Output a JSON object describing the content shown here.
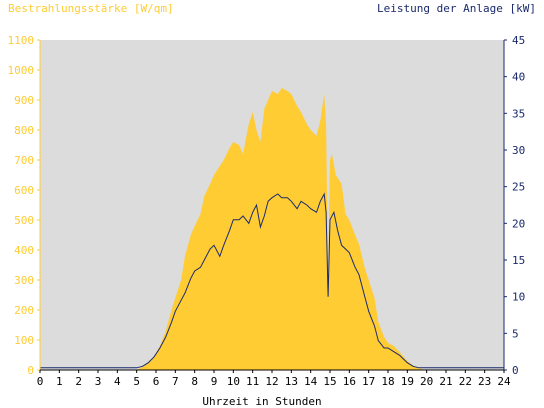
{
  "chart_data": {
    "type": "area",
    "title_left": "Bestrahlungsstärke [W/qm]",
    "title_right": "Leistung der Anlage [kW]",
    "xlabel": "Uhrzeit in Stunden",
    "x_ticks": [
      "0",
      "1",
      "2",
      "3",
      "4",
      "5",
      "6",
      "7",
      "8",
      "9",
      "10",
      "11",
      "12",
      "13",
      "14",
      "15",
      "16",
      "17",
      "18",
      "19",
      "20",
      "21",
      "22",
      "23",
      "24"
    ],
    "xlim": [
      0,
      24
    ],
    "y_left": {
      "lim": [
        0,
        1100
      ],
      "ticks": [
        "0",
        "100",
        "200",
        "300",
        "400",
        "500",
        "600",
        "700",
        "800",
        "900",
        "1000",
        "1100"
      ]
    },
    "y_right": {
      "lim": [
        0,
        45
      ],
      "ticks": [
        "0",
        "5",
        "10",
        "15",
        "20",
        "25",
        "30",
        "35",
        "40",
        "45"
      ]
    },
    "grid": false,
    "colors": {
      "plot_background": "#dcdcdc",
      "irradiance_fill": "#ffcc33",
      "power_line": "#1a2a6c",
      "left_axis_text": "#ffcc33",
      "right_axis_text": "#1a2a6c",
      "bottom_axis_text": "#000000"
    },
    "series": [
      {
        "axis": "left",
        "style": "area",
        "x": [
          0,
          5.0,
          5.3,
          5.6,
          5.9,
          6.2,
          6.5,
          6.8,
          7.0,
          7.3,
          7.5,
          7.8,
          8.0,
          8.3,
          8.5,
          8.8,
          9.0,
          9.3,
          9.5,
          9.8,
          10.0,
          10.3,
          10.5,
          10.8,
          11.0,
          11.2,
          11.4,
          11.6,
          11.8,
          12.0,
          12.3,
          12.5,
          12.8,
          13.0,
          13.3,
          13.5,
          13.8,
          14.0,
          14.3,
          14.5,
          14.7,
          14.8,
          14.9,
          15.0,
          15.1,
          15.3,
          15.6,
          15.8,
          16.0,
          16.3,
          16.5,
          16.8,
          17.0,
          17.3,
          17.5,
          17.8,
          18.0,
          18.3,
          18.6,
          19.0,
          19.3,
          19.6,
          20.0,
          20.2,
          24
        ],
        "values": [
          0,
          0,
          10,
          25,
          45,
          80,
          130,
          200,
          240,
          300,
          380,
          450,
          480,
          520,
          580,
          620,
          650,
          680,
          700,
          740,
          760,
          750,
          720,
          820,
          860,
          800,
          760,
          870,
          900,
          930,
          920,
          940,
          930,
          920,
          880,
          860,
          820,
          800,
          780,
          830,
          920,
          820,
          300,
          700,
          720,
          650,
          620,
          520,
          500,
          450,
          420,
          340,
          300,
          240,
          160,
          110,
          90,
          80,
          60,
          30,
          15,
          5,
          0,
          0,
          0
        ]
      },
      {
        "axis": "right",
        "style": "line",
        "x": [
          0,
          5.0,
          5.3,
          5.6,
          5.9,
          6.2,
          6.5,
          6.8,
          7.0,
          7.3,
          7.5,
          7.8,
          8.0,
          8.3,
          8.5,
          8.8,
          9.0,
          9.3,
          9.5,
          9.8,
          10.0,
          10.3,
          10.5,
          10.8,
          11.0,
          11.2,
          11.4,
          11.6,
          11.8,
          12.0,
          12.3,
          12.5,
          12.8,
          13.0,
          13.3,
          13.5,
          13.8,
          14.0,
          14.3,
          14.5,
          14.7,
          14.8,
          14.9,
          15.0,
          15.2,
          15.4,
          15.6,
          15.8,
          16.0,
          16.3,
          16.5,
          16.8,
          17.0,
          17.3,
          17.5,
          17.8,
          18.0,
          18.3,
          18.6,
          19.0,
          19.3,
          19.6,
          20.0,
          20.2,
          24
        ],
        "values": [
          0.3,
          0.3,
          0.5,
          1,
          1.8,
          3,
          4.5,
          6.5,
          8,
          9.5,
          10.5,
          12.5,
          13.5,
          14,
          15,
          16.5,
          17,
          15.5,
          17,
          19,
          20.5,
          20.5,
          21,
          20,
          21.5,
          22.5,
          19.5,
          21,
          23,
          23.5,
          24,
          23.5,
          23.5,
          23,
          22,
          23,
          22.5,
          22,
          21.5,
          23,
          24,
          21.5,
          10,
          20.5,
          21.5,
          19,
          17,
          16.5,
          16,
          14,
          13,
          10,
          8,
          6,
          4,
          3,
          3,
          2.5,
          2,
          1,
          0.5,
          0.3,
          0.3,
          0.3,
          0.3
        ]
      }
    ]
  }
}
